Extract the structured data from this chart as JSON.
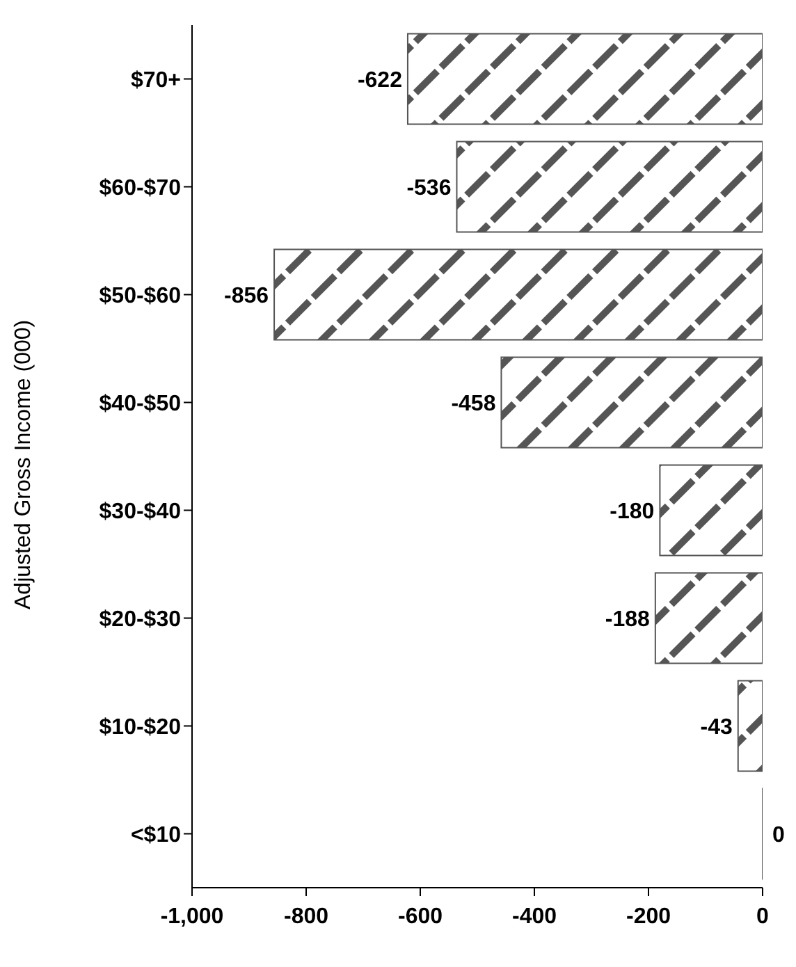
{
  "chart_data": {
    "type": "bar",
    "orientation": "horizontal",
    "ylabel": "Adjusted Gross Income (000)",
    "categories": [
      "$70+",
      "$60-$70",
      "$50-$60",
      "$40-$50",
      "$30-$40",
      "$20-$30",
      "$10-$20",
      "<$10"
    ],
    "values": [
      -622,
      -536,
      -856,
      -458,
      -180,
      -188,
      -43,
      0
    ],
    "color": "#555555",
    "xlim": [
      -1000,
      0
    ],
    "xticks": [
      {
        "value": -1000,
        "label": "-1,000"
      },
      -800,
      -600,
      -400,
      -200,
      0
    ],
    "data_labels": true,
    "grid": false,
    "legend": false
  }
}
